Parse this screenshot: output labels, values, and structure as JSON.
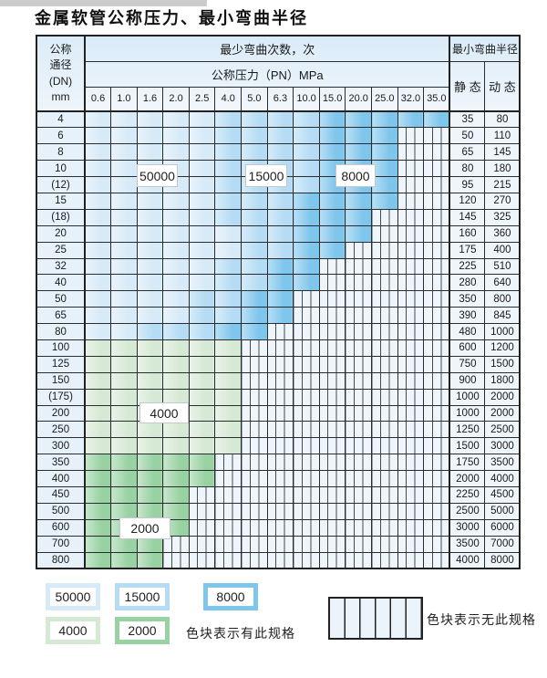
{
  "title": "金属软管公称压力、最小弯曲半径",
  "colors": {
    "b1": "#d7eaf8",
    "b2": "#b5dcf4",
    "b3": "#7fc6ec",
    "g1": "#d6e9d4",
    "g2": "#99d2a2",
    "grid": "#2a2d30",
    "header_bg": "#dcecf8",
    "no_spec_bg": "#eef5fb"
  },
  "table": {
    "header": {
      "dn_label_lines": [
        "公称",
        "通径",
        "(DN)",
        "mm"
      ],
      "bend_cycles_label": "最少弯曲次数，次",
      "pressure_label": "公称压力（PN）MPa",
      "pressure_values": [
        "0.6",
        "1.0",
        "1.6",
        "2.0",
        "2.5",
        "4.0",
        "5.0",
        "6.3",
        "10.0",
        "15.0",
        "20.0",
        "25.0",
        "32.0",
        "35.0"
      ],
      "radius_label": "最小弯曲半径",
      "static_label": "静 态",
      "dynamic_label": "动 态"
    },
    "rows": [
      {
        "dn": "4",
        "cells": [
          "b1",
          "b1",
          "b1",
          "b1",
          "b1",
          "b2",
          "b2",
          "b2",
          "b2",
          "b3",
          "b3",
          "b3",
          "b3",
          "b3"
        ],
        "static": "35",
        "dynamic": "80"
      },
      {
        "dn": "6",
        "cells": [
          "b1",
          "b1",
          "b1",
          "b1",
          "b1",
          "b2",
          "b2",
          "b2",
          "b2",
          "b3",
          "b3",
          "b3",
          "x",
          "x"
        ],
        "static": "50",
        "dynamic": "110"
      },
      {
        "dn": "8",
        "cells": [
          "b1",
          "b1",
          "b1",
          "b1",
          "b1",
          "b2",
          "b2",
          "b2",
          "b2",
          "b3",
          "b3",
          "b3",
          "x",
          "x"
        ],
        "static": "65",
        "dynamic": "145"
      },
      {
        "dn": "10",
        "cells": [
          "b1",
          "b1",
          "b1",
          "b1",
          "b1",
          "b2",
          "b2",
          "b2",
          "b2",
          "b3",
          "b3",
          "b3",
          "x",
          "x"
        ],
        "static": "80",
        "dynamic": "180"
      },
      {
        "dn": "(12)",
        "cells": [
          "b1",
          "b1",
          "b1",
          "b1",
          "b1",
          "b2",
          "b2",
          "b2",
          "b2",
          "b3",
          "b3",
          "b3",
          "x",
          "x"
        ],
        "static": "95",
        "dynamic": "215"
      },
      {
        "dn": "15",
        "cells": [
          "b1",
          "b1",
          "b1",
          "b1",
          "b1",
          "b2",
          "b2",
          "b2",
          "b3",
          "b3",
          "b3",
          "b3",
          "x",
          "x"
        ],
        "static": "120",
        "dynamic": "270"
      },
      {
        "dn": "(18)",
        "cells": [
          "b1",
          "b1",
          "b1",
          "b1",
          "b1",
          "b2",
          "b2",
          "b2",
          "b3",
          "b3",
          "b3",
          "x",
          "x",
          "x"
        ],
        "static": "145",
        "dynamic": "325"
      },
      {
        "dn": "20",
        "cells": [
          "b1",
          "b1",
          "b1",
          "b1",
          "b1",
          "b1",
          "b2",
          "b2",
          "b3",
          "b3",
          "b3",
          "x",
          "x",
          "x"
        ],
        "static": "160",
        "dynamic": "360"
      },
      {
        "dn": "25",
        "cells": [
          "b1",
          "b1",
          "b1",
          "b1",
          "b1",
          "b1",
          "b2",
          "b2",
          "b3",
          "b3",
          "x",
          "x",
          "x",
          "x"
        ],
        "static": "175",
        "dynamic": "400"
      },
      {
        "dn": "32",
        "cells": [
          "b1",
          "b1",
          "b1",
          "b1",
          "b1",
          "b2",
          "b2",
          "b3",
          "b3",
          "x",
          "x",
          "x",
          "x",
          "x"
        ],
        "static": "225",
        "dynamic": "510"
      },
      {
        "dn": "40",
        "cells": [
          "b1",
          "b1",
          "b1",
          "b1",
          "b1",
          "b2",
          "b2",
          "b3",
          "b3",
          "x",
          "x",
          "x",
          "x",
          "x"
        ],
        "static": "280",
        "dynamic": "640"
      },
      {
        "dn": "50",
        "cells": [
          "b1",
          "b1",
          "b1",
          "b1",
          "b2",
          "b2",
          "b3",
          "b3",
          "x",
          "x",
          "x",
          "x",
          "x",
          "x"
        ],
        "static": "350",
        "dynamic": "800"
      },
      {
        "dn": "65",
        "cells": [
          "b1",
          "b1",
          "b1",
          "b1",
          "b2",
          "b2",
          "b3",
          "b3",
          "x",
          "x",
          "x",
          "x",
          "x",
          "x"
        ],
        "static": "390",
        "dynamic": "845"
      },
      {
        "dn": "80",
        "cells": [
          "b1",
          "b1",
          "b2",
          "b2",
          "b2",
          "b3",
          "b3",
          "x",
          "x",
          "x",
          "x",
          "x",
          "x",
          "x"
        ],
        "static": "480",
        "dynamic": "1000"
      },
      {
        "dn": "100",
        "cells": [
          "g1",
          "g1",
          "g1",
          "g1",
          "g1",
          "g1",
          "x",
          "x",
          "x",
          "x",
          "x",
          "x",
          "x",
          "x"
        ],
        "static": "600",
        "dynamic": "1200"
      },
      {
        "dn": "125",
        "cells": [
          "g1",
          "g1",
          "g1",
          "g1",
          "g1",
          "g1",
          "x",
          "x",
          "x",
          "x",
          "x",
          "x",
          "x",
          "x"
        ],
        "static": "750",
        "dynamic": "1500"
      },
      {
        "dn": "150",
        "cells": [
          "g1",
          "g1",
          "g1",
          "g1",
          "g1",
          "g1",
          "x",
          "x",
          "x",
          "x",
          "x",
          "x",
          "x",
          "x"
        ],
        "static": "900",
        "dynamic": "1800"
      },
      {
        "dn": "(175)",
        "cells": [
          "g1",
          "g1",
          "g1",
          "g1",
          "g1",
          "g1",
          "x",
          "x",
          "x",
          "x",
          "x",
          "x",
          "x",
          "x"
        ],
        "static": "1000",
        "dynamic": "2000"
      },
      {
        "dn": "200",
        "cells": [
          "g1",
          "g1",
          "g1",
          "g1",
          "g1",
          "g1",
          "x",
          "x",
          "x",
          "x",
          "x",
          "x",
          "x",
          "x"
        ],
        "static": "1000",
        "dynamic": "2000"
      },
      {
        "dn": "250",
        "cells": [
          "g1",
          "g1",
          "g1",
          "g1",
          "g1",
          "g1",
          "x",
          "x",
          "x",
          "x",
          "x",
          "x",
          "x",
          "x"
        ],
        "static": "1250",
        "dynamic": "2500"
      },
      {
        "dn": "300",
        "cells": [
          "g1",
          "g1",
          "g1",
          "g1",
          "g1",
          "g1",
          "x",
          "x",
          "x",
          "x",
          "x",
          "x",
          "x",
          "x"
        ],
        "static": "1500",
        "dynamic": "3000"
      },
      {
        "dn": "350",
        "cells": [
          "g2",
          "g2",
          "g2",
          "g2",
          "g2",
          "x",
          "x",
          "x",
          "x",
          "x",
          "x",
          "x",
          "x",
          "x"
        ],
        "static": "1750",
        "dynamic": "3500"
      },
      {
        "dn": "400",
        "cells": [
          "g2",
          "g2",
          "g2",
          "g2",
          "g2",
          "x",
          "x",
          "x",
          "x",
          "x",
          "x",
          "x",
          "x",
          "x"
        ],
        "static": "2000",
        "dynamic": "4000"
      },
      {
        "dn": "450",
        "cells": [
          "g2",
          "g2",
          "g2",
          "g2",
          "x",
          "x",
          "x",
          "x",
          "x",
          "x",
          "x",
          "x",
          "x",
          "x"
        ],
        "static": "2250",
        "dynamic": "4500"
      },
      {
        "dn": "500",
        "cells": [
          "g2",
          "g2",
          "g2",
          "g2",
          "x",
          "x",
          "x",
          "x",
          "x",
          "x",
          "x",
          "x",
          "x",
          "x"
        ],
        "static": "2500",
        "dynamic": "5000"
      },
      {
        "dn": "600",
        "cells": [
          "g2",
          "g2",
          "g2",
          "g2",
          "x",
          "x",
          "x",
          "x",
          "x",
          "x",
          "x",
          "x",
          "x",
          "x"
        ],
        "static": "3000",
        "dynamic": "6000"
      },
      {
        "dn": "700",
        "cells": [
          "g2",
          "g2",
          "g2",
          "x",
          "x",
          "x",
          "x",
          "x",
          "x",
          "x",
          "x",
          "x",
          "x",
          "x"
        ],
        "static": "3500",
        "dynamic": "7000"
      },
      {
        "dn": "800",
        "cells": [
          "g2",
          "g2",
          "g2",
          "x",
          "x",
          "x",
          "x",
          "x",
          "x",
          "x",
          "x",
          "x",
          "x",
          "x"
        ],
        "static": "4000",
        "dynamic": "8000"
      }
    ]
  },
  "zone_labels": {
    "z50000": "50000",
    "z15000": "15000",
    "z8000": "8000",
    "z4000": "4000",
    "z2000": "2000"
  },
  "legend": {
    "items": [
      {
        "label": "50000",
        "zone": "b1"
      },
      {
        "label": "15000",
        "zone": "b2"
      },
      {
        "label": "8000",
        "zone": "b3"
      },
      {
        "label": "4000",
        "zone": "g1"
      },
      {
        "label": "2000",
        "zone": "g2"
      }
    ],
    "has_spec_note": "色块表示有此规格",
    "no_spec_note": "色块表示无此规格"
  }
}
